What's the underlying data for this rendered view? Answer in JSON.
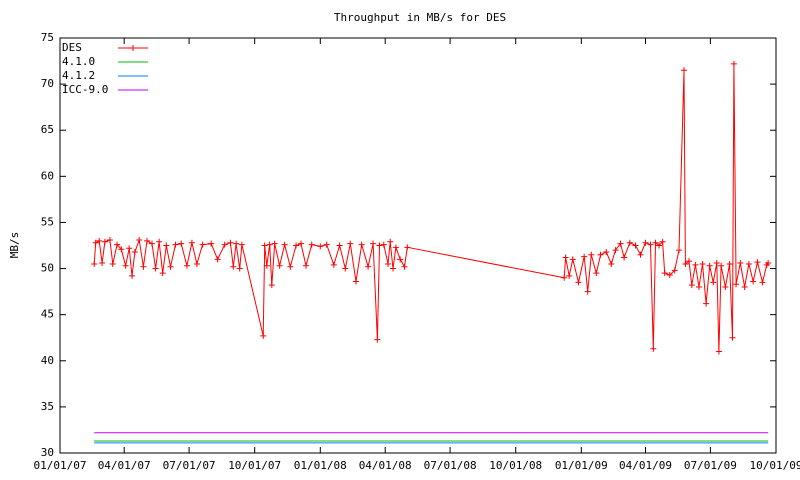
{
  "chart_data": {
    "type": "line",
    "title": "Throughput in MB/s for DES",
    "y_label": "MB/s",
    "xlim": [
      "01/01/07",
      "10/01/09"
    ],
    "xticks": [
      "01/01/07",
      "04/01/07",
      "07/01/07",
      "10/01/07",
      "01/01/08",
      "04/01/08",
      "07/01/08",
      "10/01/08",
      "01/01/09",
      "04/01/09",
      "07/01/09",
      "10/01/09"
    ],
    "ylim": [
      30,
      75
    ],
    "yticks": [
      30,
      35,
      40,
      45,
      50,
      55,
      60,
      65,
      70,
      75
    ],
    "legend": "top-left",
    "series": [
      {
        "name": "DES",
        "color": "#ff0000",
        "marker": "plus",
        "x": [
          "02/18/07",
          "02/20/07",
          "02/25/07",
          "03/01/07",
          "03/05/07",
          "03/12/07",
          "03/16/07",
          "03/22/07",
          "03/28/07",
          "04/03/07",
          "04/08/07",
          "04/12/07",
          "04/16/07",
          "04/22/07",
          "04/28/07",
          "05/03/07",
          "05/10/07",
          "05/15/07",
          "05/20/07",
          "05/25/07",
          "05/30/07",
          "06/05/07",
          "06/12/07",
          "06/20/07",
          "06/28/07",
          "07/05/07",
          "07/12/07",
          "07/20/07",
          "08/01/07",
          "08/10/07",
          "08/20/07",
          "08/28/07",
          "09/01/07",
          "09/05/07",
          "09/10/07",
          "09/13/07",
          "10/13/07",
          "10/15/07",
          "10/18/07",
          "10/22/07",
          "10/25/07",
          "10/29/07",
          "11/05/07",
          "11/12/07",
          "11/20/07",
          "11/28/07",
          "12/05/07",
          "12/12/07",
          "12/20/07",
          "01/01/08",
          "01/10/08",
          "01/20/08",
          "01/28/08",
          "02/05/08",
          "02/12/08",
          "02/20/08",
          "02/28/08",
          "03/08/08",
          "03/15/08",
          "03/21/08",
          "03/24/08",
          "03/30/08",
          "04/05/08",
          "04/08/08",
          "04/12/08",
          "04/16/08",
          "04/22/08",
          "04/28/08",
          "05/02/08",
          "12/08/08",
          "12/10/08",
          "12/15/08",
          "12/20/08",
          "12/28/08",
          "01/05/09",
          "01/10/09",
          "01/15/09",
          "01/22/09",
          "01/28/09",
          "02/05/09",
          "02/12/09",
          "02/18/09",
          "02/25/09",
          "03/02/09",
          "03/10/09",
          "03/18/09",
          "03/25/09",
          "04/01/09",
          "04/08/09",
          "04/12/09",
          "04/15/09",
          "04/20/09",
          "04/25/09",
          "04/28/09",
          "05/05/09",
          "05/12/09",
          "05/18/09",
          "05/25/09",
          "05/27/09",
          "06/01/09",
          "06/05/09",
          "06/10/09",
          "06/15/09",
          "06/20/09",
          "06/25/09",
          "06/30/09",
          "07/05/09",
          "07/10/09",
          "07/13/09",
          "07/16/09",
          "07/22/09",
          "07/28/09",
          "08/01/09",
          "08/03/09",
          "08/06/09",
          "08/12/09",
          "08/18/09",
          "08/24/09",
          "08/30/09",
          "09/05/09",
          "09/12/09",
          "09/18/09",
          "09/20/09"
        ],
        "values": [
          50.5,
          52.8,
          53.0,
          50.6,
          52.9,
          53.1,
          50.5,
          52.6,
          52.1,
          50.3,
          52.2,
          49.2,
          51.8,
          53.1,
          50.2,
          53.0,
          52.7,
          50.0,
          52.9,
          49.5,
          52.5,
          50.2,
          52.6,
          52.7,
          50.3,
          52.8,
          50.5,
          52.6,
          52.7,
          51.0,
          52.6,
          52.8,
          50.2,
          52.7,
          50.0,
          52.6,
          42.7,
          52.5,
          50.3,
          52.6,
          48.2,
          52.7,
          50.3,
          52.6,
          50.2,
          52.5,
          52.7,
          50.3,
          52.6,
          52.4,
          52.6,
          50.4,
          52.5,
          50.0,
          52.7,
          48.6,
          52.6,
          50.2,
          52.7,
          42.3,
          52.5,
          52.6,
          50.5,
          52.9,
          50.0,
          52.3,
          51.0,
          50.2,
          52.3,
          49.0,
          51.2,
          49.2,
          51.0,
          48.5,
          51.3,
          47.5,
          51.5,
          49.5,
          51.5,
          51.8,
          50.5,
          52.0,
          52.7,
          51.2,
          52.8,
          52.5,
          51.5,
          52.8,
          52.6,
          41.3,
          52.8,
          52.5,
          52.9,
          49.5,
          49.3,
          49.8,
          52.0,
          71.5,
          50.5,
          50.8,
          48.2,
          50.4,
          48.0,
          50.5,
          46.2,
          50.3,
          48.5,
          50.6,
          41.0,
          50.3,
          48.0,
          50.5,
          42.5,
          72.2,
          48.3,
          50.6,
          48.0,
          50.5,
          48.6,
          50.7,
          48.5,
          50.4,
          50.6
        ]
      },
      {
        "name": "4.1.0",
        "color": "#00c000",
        "x": [
          "02/18/07",
          "09/20/09"
        ],
        "values": [
          31.3,
          31.3
        ]
      },
      {
        "name": "4.1.2",
        "color": "#0080ff",
        "x": [
          "02/18/07",
          "09/20/09"
        ],
        "values": [
          31.1,
          31.1
        ]
      },
      {
        "name": "ICC-9.0",
        "color": "#c000ff",
        "x": [
          "02/18/07",
          "09/20/09"
        ],
        "values": [
          32.2,
          32.2
        ]
      }
    ]
  }
}
